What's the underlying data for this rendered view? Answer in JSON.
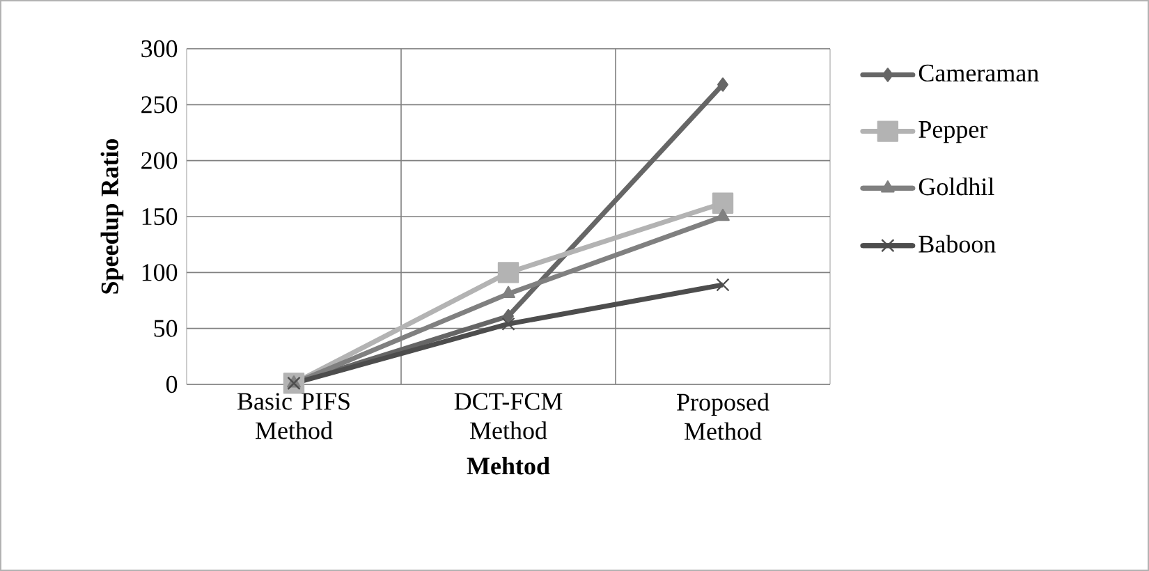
{
  "chart_data": {
    "type": "line",
    "xlabel": "Mehtod",
    "ylabel": "Speedup Ratio",
    "categories": [
      "Basic PIFS Method",
      "DCT-FCM Method",
      "Proposed Method"
    ],
    "series": [
      {
        "name": "Cameraman",
        "color": "#666666",
        "marker": "diamond",
        "values": [
          1,
          61,
          268
        ]
      },
      {
        "name": "Pepper",
        "color": "#b3b3b3",
        "marker": "square",
        "values": [
          1,
          100,
          162
        ]
      },
      {
        "name": "Goldhil",
        "color": "#808080",
        "marker": "triangle",
        "values": [
          1,
          81,
          150
        ]
      },
      {
        "name": "Baboon",
        "color": "#4d4d4d",
        "marker": "cross",
        "values": [
          1,
          54,
          89
        ]
      }
    ],
    "ylim": [
      0,
      300
    ],
    "yticks": [
      0,
      50,
      100,
      150,
      200,
      250,
      300
    ],
    "grid": true,
    "legend": "right"
  }
}
